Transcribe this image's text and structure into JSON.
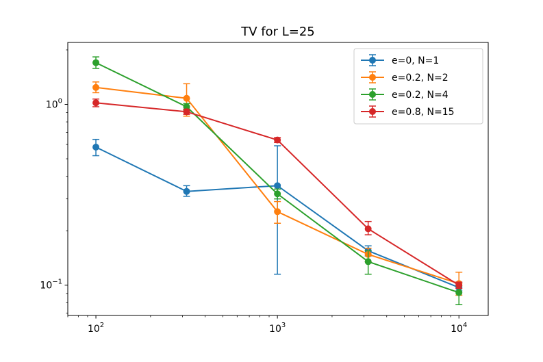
{
  "chart_data": {
    "type": "line",
    "title": "TV for L=25",
    "xscale": "log",
    "yscale": "log",
    "xlim": [
      70,
      14500
    ],
    "ylim": [
      0.068,
      2.2
    ],
    "x": [
      100,
      316,
      1000,
      3162,
      10000
    ],
    "x_ticks": [
      {
        "value": 100,
        "base": "10",
        "exp": "2"
      },
      {
        "value": 1000,
        "base": "10",
        "exp": "3"
      },
      {
        "value": 10000,
        "base": "10",
        "exp": "4"
      }
    ],
    "y_ticks": [
      {
        "value": 0.1,
        "base": "10",
        "exp": "−1"
      },
      {
        "value": 1,
        "base": "10",
        "exp": "0"
      }
    ],
    "legend_position": "top-right",
    "series": [
      {
        "name": "e=0, N=1",
        "color": "#1f77b4",
        "values": [
          0.58,
          0.33,
          0.355,
          0.155,
          0.097
        ],
        "err_low": [
          0.52,
          0.31,
          0.115,
          0.145,
          0.093
        ],
        "err_high": [
          0.64,
          0.355,
          0.59,
          0.165,
          0.103
        ]
      },
      {
        "name": "e=0.2, N=2",
        "color": "#ff7f0e",
        "values": [
          1.24,
          1.08,
          0.255,
          0.148,
          0.102
        ],
        "err_low": [
          1.16,
          0.86,
          0.22,
          0.135,
          0.088
        ],
        "err_high": [
          1.33,
          1.3,
          0.29,
          0.16,
          0.118
        ]
      },
      {
        "name": "e=0.2, N=4",
        "color": "#2ca02c",
        "values": [
          1.7,
          0.97,
          0.32,
          0.135,
          0.091
        ],
        "err_low": [
          1.58,
          0.93,
          0.3,
          0.115,
          0.078
        ],
        "err_high": [
          1.83,
          1.01,
          0.34,
          0.155,
          0.099
        ]
      },
      {
        "name": "e=0.8, N=15",
        "color": "#d62728",
        "values": [
          1.02,
          0.91,
          0.635,
          0.205,
          0.1
        ],
        "err_low": [
          0.97,
          0.88,
          0.615,
          0.19,
          0.096
        ],
        "err_high": [
          1.07,
          0.94,
          0.655,
          0.225,
          0.104
        ]
      }
    ]
  }
}
